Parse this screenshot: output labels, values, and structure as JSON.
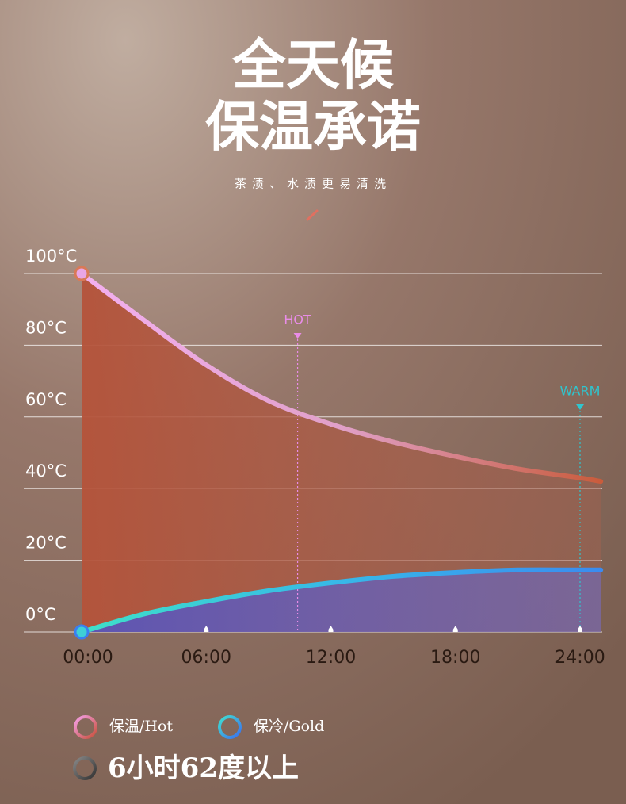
{
  "title": "全天候",
  "subtitle": "保温承诺",
  "tagline": "茶渍、水渍更易清洗",
  "chart_data": {
    "type": "line",
    "x": [
      0,
      3,
      6,
      9,
      12,
      15,
      18,
      21,
      24,
      25
    ],
    "series": [
      {
        "name": "保温/Hot",
        "color": "#e9a6e6",
        "values": [
          100,
          87,
          74.5,
          64.5,
          58,
          53,
          49,
          45.5,
          43,
          42
        ]
      },
      {
        "name": "保冷/Gold",
        "color": "#3ecfd6",
        "values": [
          0,
          5,
          8.5,
          11.5,
          13.7,
          15.5,
          16.6,
          17.3,
          17.3,
          17.3
        ]
      }
    ],
    "xlim": [
      0,
      24
    ],
    "xticks": [
      {
        "value": 0,
        "label": "00:00"
      },
      {
        "value": 6,
        "label": "06:00"
      },
      {
        "value": 12,
        "label": "12:00"
      },
      {
        "value": 18,
        "label": "18:00"
      },
      {
        "value": 24,
        "label": "24:00"
      }
    ],
    "ylim": [
      0,
      100
    ],
    "yticks": [
      {
        "value": 0,
        "label": "0°C"
      },
      {
        "value": 20,
        "label": "20°C"
      },
      {
        "value": 40,
        "label": "40°C"
      },
      {
        "value": 60,
        "label": "60°C"
      },
      {
        "value": 80,
        "label": "80°C"
      },
      {
        "value": 100,
        "label": "100°C"
      }
    ],
    "grid": true,
    "annotations": [
      {
        "text": "HOT",
        "x": 10.4,
        "color": "#e98ce8"
      },
      {
        "text": "WARM",
        "x": 24,
        "color": "#2fc6cf"
      }
    ],
    "note": "6小时62度以上"
  }
}
